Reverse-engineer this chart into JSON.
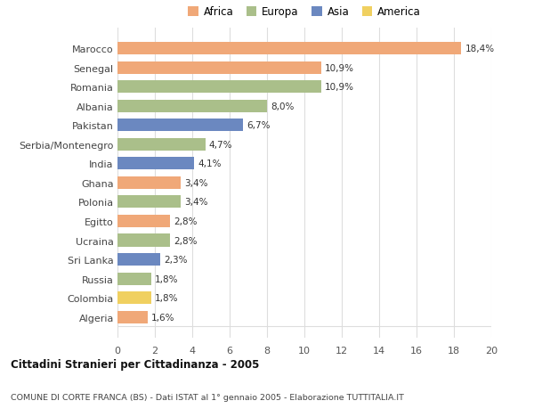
{
  "countries": [
    "Marocco",
    "Senegal",
    "Romania",
    "Albania",
    "Pakistan",
    "Serbia/Montenegro",
    "India",
    "Ghana",
    "Polonia",
    "Egitto",
    "Ucraina",
    "Sri Lanka",
    "Russia",
    "Colombia",
    "Algeria"
  ],
  "values": [
    18.4,
    10.9,
    10.9,
    8.0,
    6.7,
    4.7,
    4.1,
    3.4,
    3.4,
    2.8,
    2.8,
    2.3,
    1.8,
    1.8,
    1.6
  ],
  "labels": [
    "18,4%",
    "10,9%",
    "10,9%",
    "8,0%",
    "6,7%",
    "4,7%",
    "4,1%",
    "3,4%",
    "3,4%",
    "2,8%",
    "2,8%",
    "2,3%",
    "1,8%",
    "1,8%",
    "1,6%"
  ],
  "continents": [
    "Africa",
    "Africa",
    "Europa",
    "Europa",
    "Asia",
    "Europa",
    "Asia",
    "Africa",
    "Europa",
    "Africa",
    "Europa",
    "Asia",
    "Europa",
    "America",
    "Africa"
  ],
  "colors": {
    "Africa": "#F0A878",
    "Europa": "#AABF8A",
    "Asia": "#6B88C0",
    "America": "#F0D060"
  },
  "legend_order": [
    "Africa",
    "Europa",
    "Asia",
    "America"
  ],
  "xlim": [
    0,
    20
  ],
  "xticks": [
    0,
    2,
    4,
    6,
    8,
    10,
    12,
    14,
    16,
    18,
    20
  ],
  "title_main": "Cittadini Stranieri per Cittadinanza - 2005",
  "title_sub": "COMUNE DI CORTE FRANCA (BS) - Dati ISTAT al 1° gennaio 2005 - Elaborazione TUTTITALIA.IT",
  "bg_color": "#FFFFFF",
  "grid_color": "#DDDDDD",
  "bar_height": 0.65
}
